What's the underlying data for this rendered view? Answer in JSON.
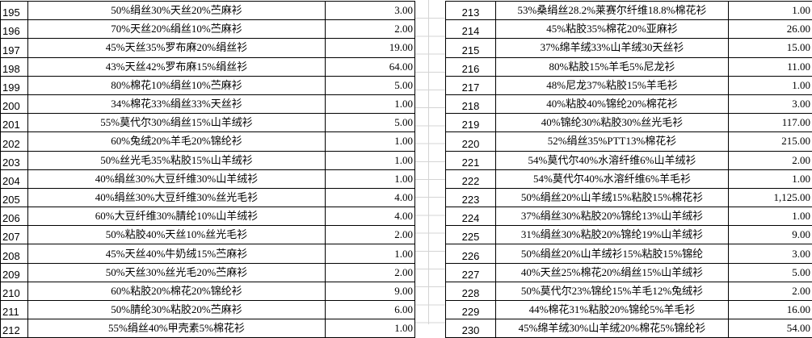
{
  "left_table": {
    "rows": [
      {
        "no": "195",
        "desc": "50%绢丝30%天丝20%苎麻衫",
        "value": "3.00"
      },
      {
        "no": "196",
        "desc": "70%天丝20%绢丝10%苎麻衫",
        "value": "2.00"
      },
      {
        "no": "197",
        "desc": "45%天丝35%罗布麻20%绢丝衫",
        "value": "19.00"
      },
      {
        "no": "198",
        "desc": "43%天丝42%罗布麻15%绢丝衫",
        "value": "64.00"
      },
      {
        "no": "199",
        "desc": "80%棉花10%绢丝10%苎麻衫",
        "value": "5.00"
      },
      {
        "no": "200",
        "desc": "34%棉花33%绢丝33%天丝衫",
        "value": "1.00"
      },
      {
        "no": "201",
        "desc": "55%莫代尔30%绢丝15%山羊绒衫",
        "value": "5.00"
      },
      {
        "no": "202",
        "desc": "60%兔绒20%羊毛20%锦纶衫",
        "value": "1.00"
      },
      {
        "no": "203",
        "desc": "50%丝光毛35%粘胶15%山羊绒衫",
        "value": "1.00"
      },
      {
        "no": "204",
        "desc": "40%绢丝30%大豆纤维30%山羊绒衫",
        "value": "1.00"
      },
      {
        "no": "205",
        "desc": "40%绢丝30%大豆纤维30%丝光毛衫",
        "value": "4.00"
      },
      {
        "no": "206",
        "desc": "60%大豆纤维30%腈纶10%山羊绒衫",
        "value": "4.00"
      },
      {
        "no": "207",
        "desc": "50%粘胶40%天丝10%丝光毛衫",
        "value": "2.00"
      },
      {
        "no": "208",
        "desc": "45%天丝40%牛奶绒15%苎麻衫",
        "value": "1.00"
      },
      {
        "no": "209",
        "desc": "50%天丝30%丝光毛20%苎麻衫",
        "value": "2.00"
      },
      {
        "no": "210",
        "desc": "60%粘胶20%棉花20%锦纶衫",
        "value": "9.00"
      },
      {
        "no": "211",
        "desc": "50%腈纶30%粘胶20%苎麻衫",
        "value": "6.00"
      },
      {
        "no": "212",
        "desc": "55%绢丝40%甲壳素5%棉花衫",
        "value": "1.00"
      }
    ]
  },
  "right_table": {
    "rows": [
      {
        "no": "213",
        "desc": "53%桑绢丝28.2%莱赛尔纤维18.8%棉花衫",
        "value": "1.00"
      },
      {
        "no": "214",
        "desc": "45%粘胶35%棉花20%亚麻衫",
        "value": "26.00"
      },
      {
        "no": "215",
        "desc": "37%绵羊绒33%山羊绒30天丝衫",
        "value": "15.00"
      },
      {
        "no": "216",
        "desc": "80%粘胶15%羊毛5%尼龙衫",
        "value": "11.00"
      },
      {
        "no": "217",
        "desc": "48%尼龙37%粘胶15%羊毛衫",
        "value": "1.00"
      },
      {
        "no": "218",
        "desc": "40%粘胶40%锦纶20%棉花衫",
        "value": "3.00"
      },
      {
        "no": "219",
        "desc": "40%锦纶30%粘胶30%丝光毛衫",
        "value": "117.00"
      },
      {
        "no": "220",
        "desc": "52%绢丝35%PTT13%棉花衫",
        "value": "215.00"
      },
      {
        "no": "221",
        "desc": "54%莫代尔40%水溶纤维6%山羊绒衫",
        "value": "2.00"
      },
      {
        "no": "222",
        "desc": "54%莫代尔40%水溶纤维6%羊毛衫",
        "value": "1.00"
      },
      {
        "no": "223",
        "desc": "50%绢丝20%山羊绒15%粘胶15%棉花衫",
        "value": "1,125.00"
      },
      {
        "no": "224",
        "desc": "37%绢丝30%粘胶20%锦纶13%山羊绒衫",
        "value": "1.00"
      },
      {
        "no": "225",
        "desc": "31%绢丝30%粘胶20%锦纶19%山羊绒衫",
        "value": "9.00"
      },
      {
        "no": "226",
        "desc": "50%绢丝20%山羊绒衫15%粘胶15%锦纶",
        "value": "3.00"
      },
      {
        "no": "227",
        "desc": "40%天丝25%棉花20%绢丝15%山羊绒衫",
        "value": "5.00"
      },
      {
        "no": "228",
        "desc": "50%莫代尔23%锦纶15%羊毛12%兔绒衫",
        "value": "2.00"
      },
      {
        "no": "229",
        "desc": "44%棉花31%粘胶20%锦纶5%羊毛衫",
        "value": "16.00"
      },
      {
        "no": "230",
        "desc": "45%绵羊绒30%山羊绒20%棉花5%锦纶衫",
        "value": "54.00"
      }
    ]
  }
}
